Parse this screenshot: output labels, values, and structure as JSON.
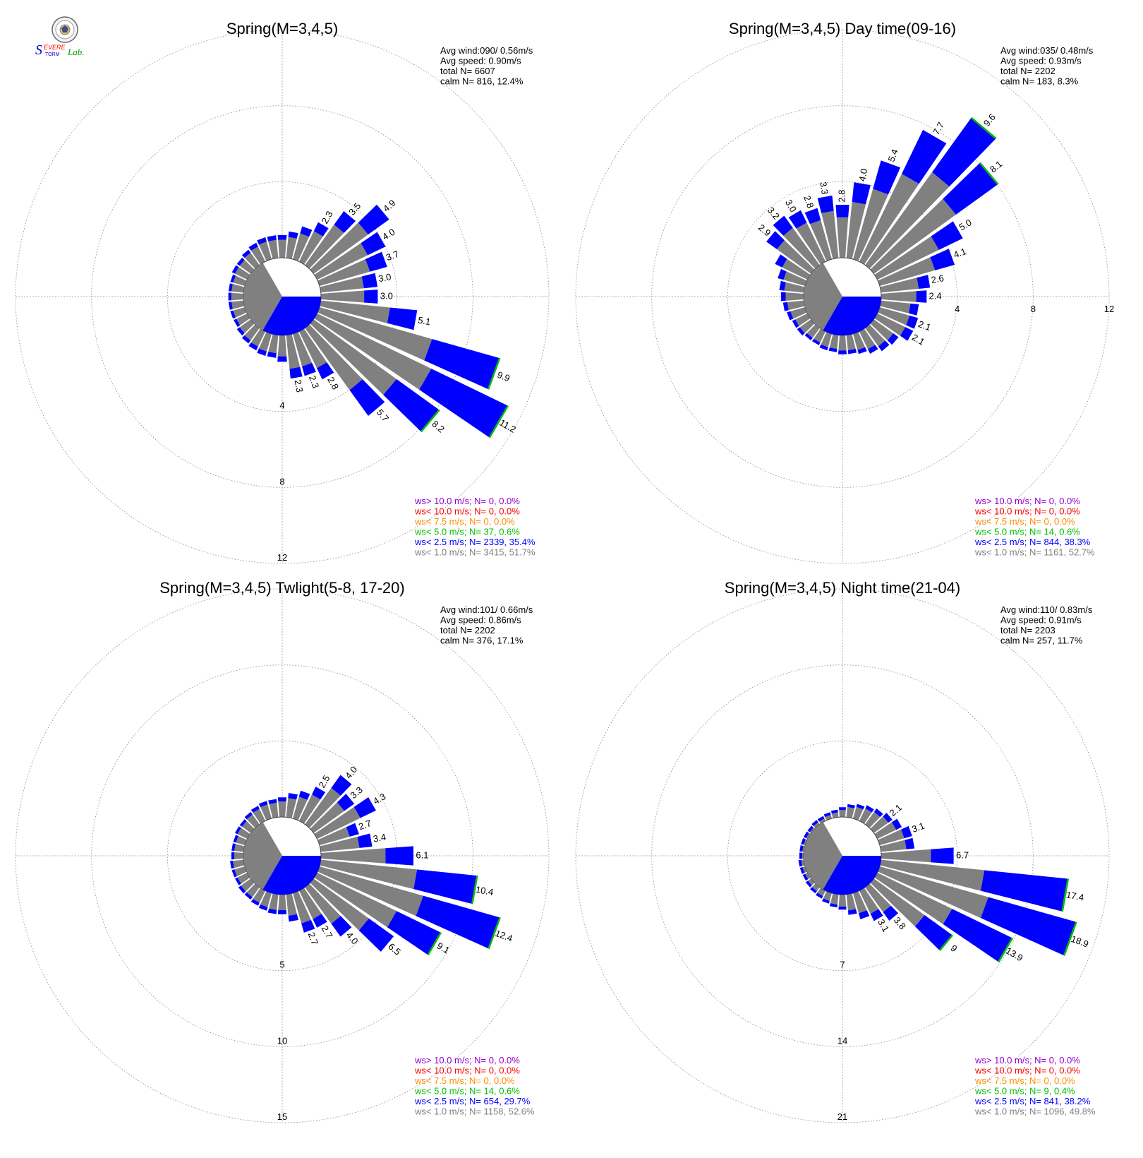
{
  "logo": {
    "text_s": "S",
    "text_evere": "EVERE",
    "text_torm": "TORM",
    "text_lab": "Lab."
  },
  "colors": {
    "gray": "#808080",
    "blue": "#0000ff",
    "green": "#00c000",
    "orange": "#ff8c00",
    "red": "#ff0000",
    "purple": "#9400d3"
  },
  "chart_data": [
    {
      "type": "polar-bar",
      "title": "Spring(M=3,4,5)",
      "stats": [
        "Avg wind:090/ 0.56m/s",
        "Avg speed: 0.90m/s",
        "total N=       6607",
        "calm N=     816,  12.4%"
      ],
      "rmax": 12,
      "ring_values": [
        4,
        8,
        12
      ],
      "ring_labels": [
        "4",
        "8",
        "12"
      ],
      "ring_label_axis": "south",
      "calm_pct": 12.4,
      "petals": [
        {
          "dir": 0,
          "pct": 1.2
        },
        {
          "dir": 10,
          "pct": 1.4
        },
        {
          "dir": 20,
          "pct": 1.8
        },
        {
          "dir": 30,
          "pct": 2.3,
          "label": "2.3"
        },
        {
          "dir": 40,
          "pct": 3.5,
          "label": "3.5"
        },
        {
          "dir": 50,
          "pct": 4.9,
          "label": "4.9"
        },
        {
          "dir": 60,
          "pct": 4.0,
          "label": "4.0"
        },
        {
          "dir": 70,
          "pct": 3.7,
          "label": "3.7"
        },
        {
          "dir": 80,
          "pct": 3.0,
          "label": "3.0"
        },
        {
          "dir": 90,
          "pct": 3.0,
          "label": "3.0"
        },
        {
          "dir": 100,
          "pct": 5.1,
          "label": "5.1"
        },
        {
          "dir": 110,
          "pct": 9.9,
          "label": "9.9"
        },
        {
          "dir": 120,
          "pct": 11.2,
          "label": "11.2"
        },
        {
          "dir": 130,
          "pct": 8.2,
          "label": "8.2"
        },
        {
          "dir": 140,
          "pct": 5.7,
          "label": "5.7"
        },
        {
          "dir": 150,
          "pct": 2.8,
          "label": "2.8"
        },
        {
          "dir": 160,
          "pct": 2.3,
          "label": "2.3"
        },
        {
          "dir": 170,
          "pct": 2.3,
          "label": "2.3"
        },
        {
          "dir": 180,
          "pct": 1.4
        },
        {
          "dir": 190,
          "pct": 1.2
        },
        {
          "dir": 200,
          "pct": 1.2
        },
        {
          "dir": 210,
          "pct": 1.1
        },
        {
          "dir": 220,
          "pct": 1.0
        },
        {
          "dir": 230,
          "pct": 0.9
        },
        {
          "dir": 240,
          "pct": 0.8
        },
        {
          "dir": 250,
          "pct": 0.8
        },
        {
          "dir": 260,
          "pct": 0.8
        },
        {
          "dir": 270,
          "pct": 0.8
        },
        {
          "dir": 280,
          "pct": 0.8
        },
        {
          "dir": 290,
          "pct": 0.8
        },
        {
          "dir": 300,
          "pct": 0.9
        },
        {
          "dir": 310,
          "pct": 0.9
        },
        {
          "dir": 320,
          "pct": 1.0
        },
        {
          "dir": 330,
          "pct": 1.1
        },
        {
          "dir": 340,
          "pct": 1.2
        },
        {
          "dir": 350,
          "pct": 1.2
        }
      ],
      "legend": [
        {
          "text": "ws> 10.0 m/s; N=      0,  0.0%",
          "color": "#9400d3"
        },
        {
          "text": "ws< 10.0 m/s; N=      0,  0.0%",
          "color": "#ff0000"
        },
        {
          "text": "ws<  7.5 m/s; N=      0,  0.0%",
          "color": "#ff8c00"
        },
        {
          "text": "ws<  5.0 m/s; N=    37,  0.6%",
          "color": "#00c000"
        },
        {
          "text": "ws<  2.5 m/s; N=  2339, 35.4%",
          "color": "#0000ff"
        },
        {
          "text": "ws<  1.0 m/s; N=  3415, 51.7%",
          "color": "#808080"
        }
      ]
    },
    {
      "type": "polar-bar",
      "title": "Spring(M=3,4,5) Day time(09-16)",
      "stats": [
        "Avg wind:035/ 0.48m/s",
        "Avg speed: 0.93m/s",
        "total N=       2202",
        "calm N=     183,   8.3%"
      ],
      "rmax": 12,
      "ring_values": [
        4,
        8,
        12
      ],
      "ring_labels": [
        "4",
        "8",
        "12"
      ],
      "ring_label_axis": "east",
      "calm_pct": 8.3,
      "petals": [
        {
          "dir": 0,
          "pct": 2.8,
          "label": "2.8"
        },
        {
          "dir": 10,
          "pct": 4.0,
          "label": "4.0"
        },
        {
          "dir": 20,
          "pct": 5.4,
          "label": "5.4"
        },
        {
          "dir": 30,
          "pct": 7.7,
          "label": "7.7"
        },
        {
          "dir": 40,
          "pct": 9.6,
          "label": "9.6"
        },
        {
          "dir": 50,
          "pct": 8.1,
          "label": "8.1"
        },
        {
          "dir": 60,
          "pct": 5.0,
          "label": "5.0"
        },
        {
          "dir": 70,
          "pct": 4.1,
          "label": "4.1"
        },
        {
          "dir": 80,
          "pct": 2.6,
          "label": "2.6"
        },
        {
          "dir": 90,
          "pct": 2.4,
          "label": "2.4"
        },
        {
          "dir": 100,
          "pct": 2.0
        },
        {
          "dir": 110,
          "pct": 2.1,
          "label": "2.1"
        },
        {
          "dir": 120,
          "pct": 2.1,
          "label": "2.1"
        },
        {
          "dir": 130,
          "pct": 1.6
        },
        {
          "dir": 140,
          "pct": 1.5
        },
        {
          "dir": 150,
          "pct": 1.3
        },
        {
          "dir": 160,
          "pct": 1.1
        },
        {
          "dir": 170,
          "pct": 1.0
        },
        {
          "dir": 180,
          "pct": 1.0
        },
        {
          "dir": 190,
          "pct": 0.9
        },
        {
          "dir": 200,
          "pct": 0.9
        },
        {
          "dir": 210,
          "pct": 0.8
        },
        {
          "dir": 220,
          "pct": 0.8
        },
        {
          "dir": 230,
          "pct": 0.9
        },
        {
          "dir": 240,
          "pct": 0.9
        },
        {
          "dir": 250,
          "pct": 1.0
        },
        {
          "dir": 260,
          "pct": 1.1
        },
        {
          "dir": 270,
          "pct": 1.2
        },
        {
          "dir": 280,
          "pct": 1.3
        },
        {
          "dir": 290,
          "pct": 1.5
        },
        {
          "dir": 300,
          "pct": 1.9
        },
        {
          "dir": 310,
          "pct": 2.9,
          "label": "2.9"
        },
        {
          "dir": 320,
          "pct": 3.2,
          "label": "3.2"
        },
        {
          "dir": 330,
          "pct": 3.0,
          "label": "3.0"
        },
        {
          "dir": 340,
          "pct": 2.8,
          "label": "2.8"
        },
        {
          "dir": 350,
          "pct": 3.3,
          "label": "3.3"
        }
      ],
      "legend": [
        {
          "text": "ws> 10.0 m/s; N=      0,  0.0%",
          "color": "#9400d3"
        },
        {
          "text": "ws< 10.0 m/s; N=      0,  0.0%",
          "color": "#ff0000"
        },
        {
          "text": "ws<  7.5 m/s; N=      0,  0.0%",
          "color": "#ff8c00"
        },
        {
          "text": "ws<  5.0 m/s; N=    14,  0.6%",
          "color": "#00c000"
        },
        {
          "text": "ws<  2.5 m/s; N=   844, 38.3%",
          "color": "#0000ff"
        },
        {
          "text": "ws<  1.0 m/s; N=  1161, 52.7%",
          "color": "#808080"
        }
      ]
    },
    {
      "type": "polar-bar",
      "title": "Spring(M=3,4,5) Twlight(5-8, 17-20)",
      "stats": [
        "Avg wind:101/ 0.66m/s",
        "Avg speed: 0.86m/s",
        "total N=       2202",
        "calm N=     376,  17.1%"
      ],
      "rmax": 15,
      "ring_values": [
        5,
        10,
        15
      ],
      "ring_labels": [
        "5",
        "10",
        "15"
      ],
      "ring_label_axis": "south",
      "calm_pct": 17.1,
      "petals": [
        {
          "dir": 0,
          "pct": 1.3
        },
        {
          "dir": 10,
          "pct": 1.6
        },
        {
          "dir": 20,
          "pct": 1.9
        },
        {
          "dir": 30,
          "pct": 2.5,
          "label": "2.5"
        },
        {
          "dir": 40,
          "pct": 4.0,
          "label": "4.0"
        },
        {
          "dir": 50,
          "pct": 3.3,
          "label": "3.3"
        },
        {
          "dir": 60,
          "pct": 4.3,
          "label": "4.3"
        },
        {
          "dir": 70,
          "pct": 2.7,
          "label": "2.7"
        },
        {
          "dir": 80,
          "pct": 3.4,
          "label": "3.4"
        },
        {
          "dir": 90,
          "pct": 6.1,
          "label": "6.1"
        },
        {
          "dir": 100,
          "pct": 10.4,
          "label": "10.4"
        },
        {
          "dir": 110,
          "pct": 12.4,
          "label": "12.4"
        },
        {
          "dir": 120,
          "pct": 9.1,
          "label": "9.1"
        },
        {
          "dir": 130,
          "pct": 6.5,
          "label": "6.5"
        },
        {
          "dir": 140,
          "pct": 4.0,
          "label": "4.0"
        },
        {
          "dir": 150,
          "pct": 2.7,
          "label": "2.7"
        },
        {
          "dir": 160,
          "pct": 2.7,
          "label": "2.7"
        },
        {
          "dir": 170,
          "pct": 1.8
        },
        {
          "dir": 180,
          "pct": 1.3
        },
        {
          "dir": 190,
          "pct": 1.3
        },
        {
          "dir": 200,
          "pct": 1.2
        },
        {
          "dir": 210,
          "pct": 1.1
        },
        {
          "dir": 220,
          "pct": 1.0
        },
        {
          "dir": 230,
          "pct": 1.0
        },
        {
          "dir": 240,
          "pct": 0.9
        },
        {
          "dir": 250,
          "pct": 0.9
        },
        {
          "dir": 260,
          "pct": 0.9
        },
        {
          "dir": 270,
          "pct": 0.8
        },
        {
          "dir": 280,
          "pct": 0.8
        },
        {
          "dir": 290,
          "pct": 0.8
        },
        {
          "dir": 300,
          "pct": 0.9
        },
        {
          "dir": 310,
          "pct": 0.9
        },
        {
          "dir": 320,
          "pct": 1.0
        },
        {
          "dir": 330,
          "pct": 1.1
        },
        {
          "dir": 340,
          "pct": 1.2
        },
        {
          "dir": 350,
          "pct": 1.2
        }
      ],
      "legend": [
        {
          "text": "ws> 10.0 m/s; N=      0,  0.0%",
          "color": "#9400d3"
        },
        {
          "text": "ws< 10.0 m/s; N=      0,  0.0%",
          "color": "#ff0000"
        },
        {
          "text": "ws<  7.5 m/s; N=      0,  0.0%",
          "color": "#ff8c00"
        },
        {
          "text": "ws<  5.0 m/s; N=    14,  0.6%",
          "color": "#00c000"
        },
        {
          "text": "ws<  2.5 m/s; N=   654, 29.7%",
          "color": "#0000ff"
        },
        {
          "text": "ws<  1.0 m/s; N=  1158, 52.6%",
          "color": "#808080"
        }
      ]
    },
    {
      "type": "polar-bar",
      "title": "Spring(M=3,4,5) Night time(21-04)",
      "stats": [
        "Avg wind:110/ 0.83m/s",
        "Avg speed: 0.91m/s",
        "total N=       2203",
        "calm N=     257,  11.7%"
      ],
      "rmax": 21,
      "ring_values": [
        7,
        14,
        21
      ],
      "ring_labels": [
        "7",
        "14",
        "21"
      ],
      "ring_label_axis": "south",
      "calm_pct": 11.7,
      "petals": [
        {
          "dir": 0,
          "pct": 0.9
        },
        {
          "dir": 10,
          "pct": 1.2
        },
        {
          "dir": 20,
          "pct": 1.4
        },
        {
          "dir": 30,
          "pct": 1.6
        },
        {
          "dir": 40,
          "pct": 1.8
        },
        {
          "dir": 50,
          "pct": 2.1,
          "label": "2.1"
        },
        {
          "dir": 60,
          "pct": 2.5
        },
        {
          "dir": 70,
          "pct": 3.1,
          "label": "3.1"
        },
        {
          "dir": 80,
          "pct": 3.1
        },
        {
          "dir": 90,
          "pct": 6.7,
          "label": "6.7"
        },
        {
          "dir": 100,
          "pct": 17.4,
          "label": "17.4"
        },
        {
          "dir": 110,
          "pct": 18.9,
          "label": "18.9"
        },
        {
          "dir": 120,
          "pct": 13.9,
          "label": "13.9"
        },
        {
          "dir": 130,
          "pct": 9.0,
          "label": "9"
        },
        {
          "dir": 140,
          "pct": 3.8,
          "label": "3.8"
        },
        {
          "dir": 150,
          "pct": 3.1,
          "label": "3.1"
        },
        {
          "dir": 160,
          "pct": 2.5
        },
        {
          "dir": 170,
          "pct": 1.9
        },
        {
          "dir": 180,
          "pct": 1.4
        },
        {
          "dir": 190,
          "pct": 1.2
        },
        {
          "dir": 200,
          "pct": 1.0
        },
        {
          "dir": 210,
          "pct": 0.8
        },
        {
          "dir": 220,
          "pct": 0.7
        },
        {
          "dir": 230,
          "pct": 0.6
        },
        {
          "dir": 240,
          "pct": 0.5
        },
        {
          "dir": 250,
          "pct": 0.5
        },
        {
          "dir": 260,
          "pct": 0.5
        },
        {
          "dir": 270,
          "pct": 0.4
        },
        {
          "dir": 280,
          "pct": 0.4
        },
        {
          "dir": 290,
          "pct": 0.4
        },
        {
          "dir": 300,
          "pct": 0.4
        },
        {
          "dir": 310,
          "pct": 0.4
        },
        {
          "dir": 320,
          "pct": 0.5
        },
        {
          "dir": 330,
          "pct": 0.5
        },
        {
          "dir": 340,
          "pct": 0.6
        },
        {
          "dir": 350,
          "pct": 0.7
        }
      ],
      "legend": [
        {
          "text": "ws> 10.0 m/s; N=      0,  0.0%",
          "color": "#9400d3"
        },
        {
          "text": "ws< 10.0 m/s; N=      0,  0.0%",
          "color": "#ff0000"
        },
        {
          "text": "ws<  7.5 m/s; N=      0,  0.0%",
          "color": "#ff8c00"
        },
        {
          "text": "ws<  5.0 m/s; N=      9,  0.4%",
          "color": "#00c000"
        },
        {
          "text": "ws<  2.5 m/s; N=   841, 38.2%",
          "color": "#0000ff"
        },
        {
          "text": "ws<  1.0 m/s; N=  1096, 49.8%",
          "color": "#808080"
        }
      ]
    }
  ]
}
